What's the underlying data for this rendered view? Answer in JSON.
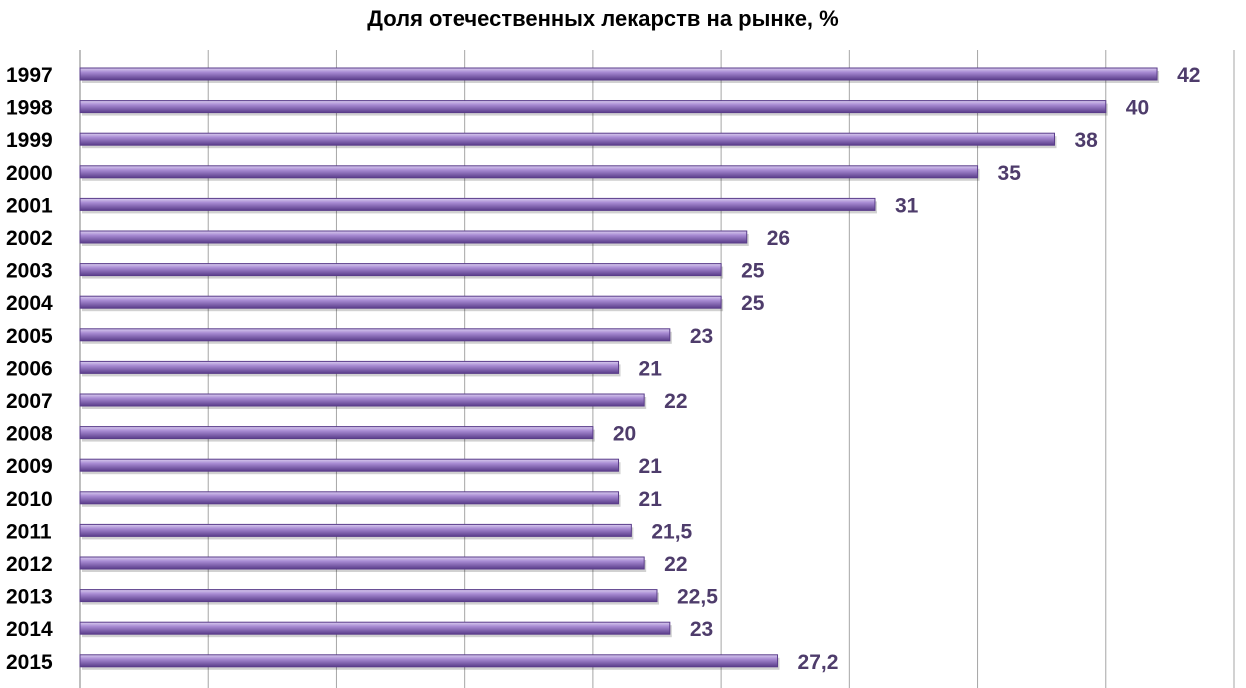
{
  "chart_data": {
    "type": "bar",
    "orientation": "horizontal",
    "title": "Доля отечественных лекарств на рынке, %",
    "categories": [
      "1997",
      "1998",
      "1999",
      "2000",
      "2001",
      "2002",
      "2003",
      "2004",
      "2005",
      "2006",
      "2007",
      "2008",
      "2009",
      "2010",
      "2011",
      "2012",
      "2013",
      "2014",
      "2015"
    ],
    "values": [
      42,
      40,
      38,
      35,
      31,
      26,
      25,
      25,
      23,
      21,
      22,
      20,
      21,
      21,
      21.5,
      22,
      22.5,
      23,
      27.2
    ],
    "value_labels": [
      "42",
      "40",
      "38",
      "35",
      "31",
      "26",
      "25",
      "25",
      "23",
      "21",
      "22",
      "20",
      "21",
      "21",
      "21,5",
      "22",
      "22,5",
      "23",
      "27,2"
    ],
    "xlim": [
      0,
      45
    ],
    "grid": true,
    "legend": "none",
    "colors": {
      "bar_dark": "#5a3d8a",
      "bar_light": "#b8a3dc",
      "label": "#4e3c6b",
      "grid": "#a6a6a6"
    }
  }
}
